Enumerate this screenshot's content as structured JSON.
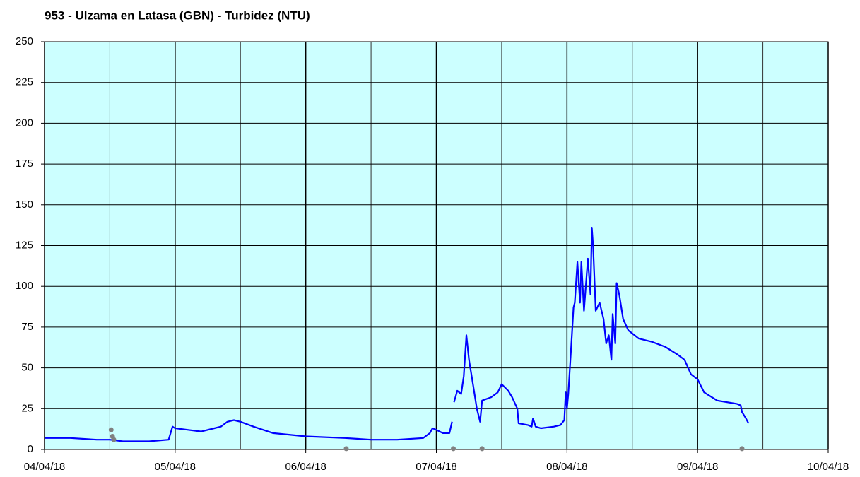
{
  "chart_data": {
    "type": "line",
    "title": "953 - Ulzama en Latasa (GBN) - Turbidez (NTU)",
    "xlim": [
      0,
      6
    ],
    "xticks": [
      {
        "value": 0,
        "label": "04/04/18"
      },
      {
        "value": 1,
        "label": "05/04/18"
      },
      {
        "value": 2,
        "label": "06/04/18"
      },
      {
        "value": 3,
        "label": "07/04/18"
      },
      {
        "value": 4,
        "label": "08/04/18"
      },
      {
        "value": 5,
        "label": "09/04/18"
      },
      {
        "value": 6,
        "label": "10/04/18"
      }
    ],
    "xminorticks": [
      0.5,
      1.5,
      2.5,
      3.5,
      4.5,
      5.5
    ],
    "ylim": [
      0,
      250
    ],
    "yticks": [
      0,
      25,
      50,
      75,
      100,
      125,
      150,
      175,
      200,
      225,
      250
    ],
    "grid": true,
    "background": "#ccffff",
    "series": [
      {
        "color": "#0000ff",
        "mode": "line",
        "x": [
          0,
          0.2,
          0.4,
          0.5,
          0.6,
          0.8,
          0.95,
          0.98,
          1.0,
          1.1,
          1.2,
          1.3,
          1.35,
          1.4,
          1.45,
          1.5,
          1.6,
          1.75,
          2.0,
          2.3,
          2.5,
          2.7,
          2.9,
          2.95,
          2.97,
          3.0,
          3.05,
          3.1,
          3.12,
          3.13,
          3.135,
          3.16,
          3.19,
          3.21,
          3.23,
          3.25,
          3.28,
          3.31,
          3.335,
          3.35,
          3.42,
          3.47,
          3.5,
          3.55,
          3.58,
          3.62,
          3.63,
          3.7,
          3.73,
          3.74,
          3.76,
          3.8,
          3.9,
          3.95,
          3.98,
          3.99,
          4.0,
          4.01,
          4.03,
          4.05,
          4.06,
          4.08,
          4.1,
          4.11,
          4.13,
          4.16,
          4.18,
          4.19,
          4.2,
          4.22,
          4.25,
          4.28,
          4.3,
          4.32,
          4.34,
          4.35,
          4.37,
          4.38,
          4.4,
          4.43,
          4.47,
          4.55,
          4.65,
          4.75,
          4.85,
          4.9,
          4.95,
          5.0,
          5.05,
          5.15,
          5.3,
          5.33,
          5.34,
          5.37,
          5.39
        ],
        "values": [
          7,
          7,
          6,
          6,
          5,
          5,
          6,
          14,
          13,
          12,
          11,
          13,
          14,
          17,
          18,
          17,
          14,
          10,
          8,
          7,
          6,
          6,
          7,
          10,
          13,
          12,
          10,
          10,
          17,
          null,
          29,
          36,
          34,
          45,
          70,
          55,
          40,
          25,
          17,
          30,
          32,
          35,
          40,
          36,
          32,
          25,
          16,
          15,
          14,
          19,
          14,
          13,
          14,
          15,
          18,
          35,
          25,
          34,
          60,
          87,
          90,
          115,
          90,
          115,
          85,
          117,
          95,
          136,
          125,
          85,
          90,
          80,
          65,
          70,
          55,
          83,
          65,
          102,
          95,
          80,
          73,
          68,
          66,
          63,
          58,
          55,
          46,
          43,
          35,
          30,
          28,
          27,
          23,
          19,
          16
        ]
      },
      {
        "color": "#808080",
        "mode": "markers",
        "x": [
          0.51,
          0.52,
          0.53,
          2.31,
          3.13,
          3.35,
          5.34
        ],
        "values": [
          12,
          8,
          6,
          0.5,
          0.5,
          0.5,
          0.5
        ]
      }
    ]
  }
}
